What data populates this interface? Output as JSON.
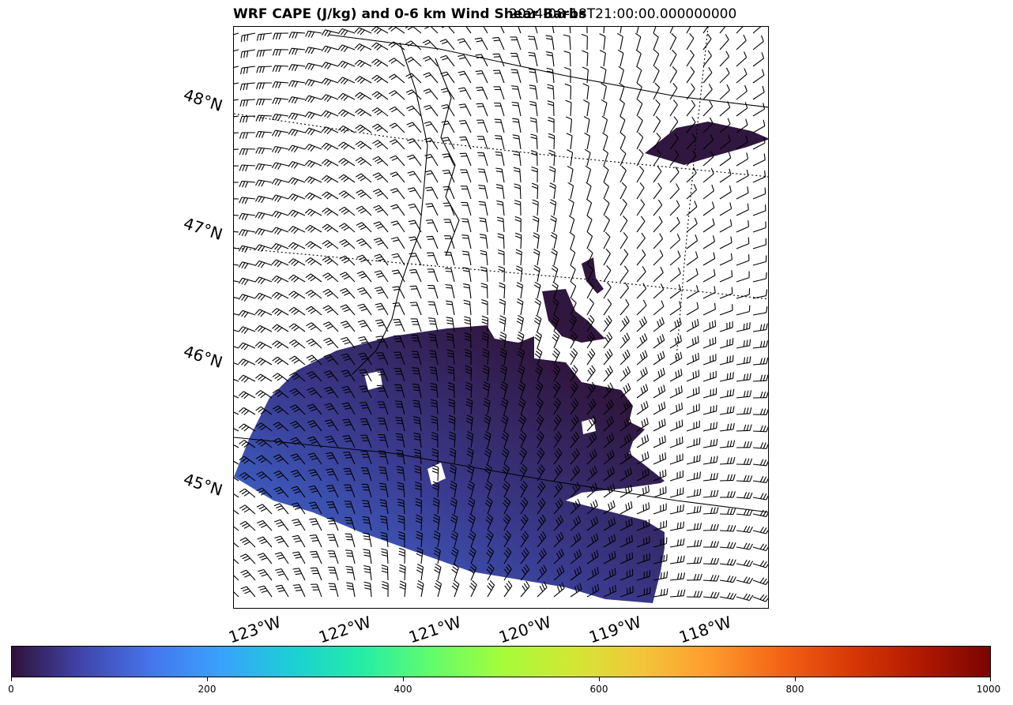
{
  "title": "WRF CAPE (J/kg) and 0-6 km Wind Shear Barbs",
  "valid_time": "2024-08-18T21:00:00.000000000",
  "map": {
    "lat_labels": [
      "48°N",
      "47°N",
      "46°N",
      "45°N"
    ],
    "lon_labels": [
      "123°W",
      "122°W",
      "121°W",
      "120°W",
      "119°W",
      "118°W"
    ],
    "field": "CAPE",
    "field_units": "J/kg",
    "overlay": "0-6 km wind shear barbs"
  },
  "colorbar": {
    "min": 0,
    "max": 1000,
    "tick_labels": [
      "0",
      "200",
      "400",
      "600",
      "800",
      "1000"
    ],
    "colormap": "turbo",
    "colors": [
      "#30123b",
      "#4145ab",
      "#4675ed",
      "#39a2fc",
      "#1bcfd4",
      "#24eca6",
      "#61fc6c",
      "#a4fc3b",
      "#d1e834",
      "#f3c63a",
      "#fe9b2d",
      "#f36315",
      "#d93806",
      "#b11901",
      "#7a0402"
    ]
  },
  "colors": {
    "cape_low": "#30173f",
    "cape_mid": "#3d3f93",
    "cape_high": "#3f8cf0"
  }
}
